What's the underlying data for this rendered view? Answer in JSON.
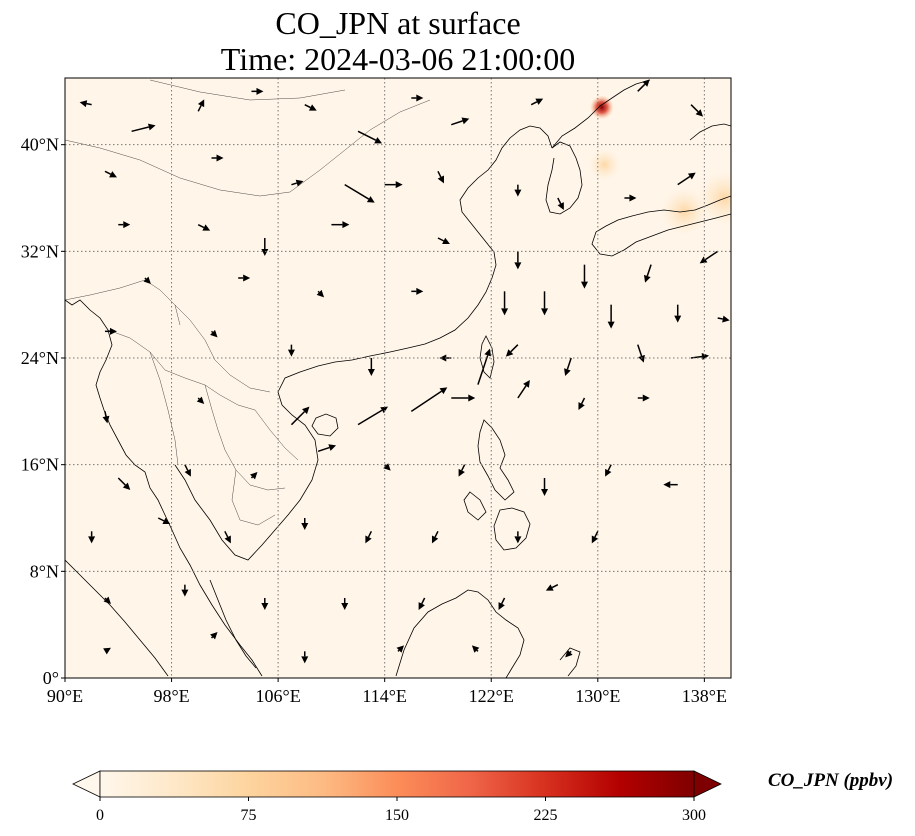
{
  "title_line1": "CO_JPN at surface",
  "title_line2": "Time: 2024-03-06 21:00:00",
  "map": {
    "projection": "PlateCarree",
    "extent": {
      "lon_min": 90,
      "lon_max": 140,
      "lat_min": 0,
      "lat_max": 45
    },
    "gridlines": true,
    "x_ticks": [
      {
        "value": 90,
        "label": "90°E"
      },
      {
        "value": 98,
        "label": "98°E"
      },
      {
        "value": 106,
        "label": "106°E"
      },
      {
        "value": 114,
        "label": "114°E"
      },
      {
        "value": 122,
        "label": "122°E"
      },
      {
        "value": 130,
        "label": "130°E"
      },
      {
        "value": 138,
        "label": "138°E"
      }
    ],
    "y_ticks": [
      {
        "value": 0,
        "label": "0°"
      },
      {
        "value": 8,
        "label": "8°N"
      },
      {
        "value": 16,
        "label": "16°N"
      },
      {
        "value": 24,
        "label": "24°N"
      },
      {
        "value": 32,
        "label": "32°N"
      },
      {
        "value": 40,
        "label": "40°N"
      }
    ],
    "background_color": "#fff5e8",
    "hotspots": [
      {
        "lon": 130.3,
        "lat": 42.8,
        "value": 300
      },
      {
        "lon": 139.5,
        "lat": 36.0,
        "value": 110
      },
      {
        "lon": 136.5,
        "lat": 35.0,
        "value": 90
      },
      {
        "lon": 130.5,
        "lat": 38.5,
        "value": 45
      }
    ]
  },
  "colorbar": {
    "label": "CO_JPN (ppbv)",
    "colormap": "OrRd",
    "min": 0,
    "max": 300,
    "extend": "both",
    "ticks": [
      {
        "value": 0,
        "label": "0"
      },
      {
        "value": 75,
        "label": "75"
      },
      {
        "value": 150,
        "label": "150"
      },
      {
        "value": 225,
        "label": "225"
      },
      {
        "value": 300,
        "label": "300"
      }
    ],
    "colors": [
      "#fff7ec",
      "#fee8c8",
      "#fdd49e",
      "#fdbb84",
      "#fc8d59",
      "#ef6548",
      "#d7301f",
      "#b30000",
      "#7f0000"
    ]
  },
  "wind_vectors": [
    {
      "lon": 92,
      "lat": 43,
      "u": -1,
      "v": 0.2
    },
    {
      "lon": 95,
      "lat": 41,
      "u": 2,
      "v": 0.5
    },
    {
      "lon": 100,
      "lat": 42.5,
      "u": 0.5,
      "v": 1
    },
    {
      "lon": 104,
      "lat": 44,
      "u": 1,
      "v": 0
    },
    {
      "lon": 108,
      "lat": 43,
      "u": 1,
      "v": -0.5
    },
    {
      "lon": 112,
      "lat": 41,
      "u": 2,
      "v": -1
    },
    {
      "lon": 116,
      "lat": 43.5,
      "u": 1,
      "v": 0
    },
    {
      "lon": 119,
      "lat": 41.5,
      "u": 1.5,
      "v": 0.5
    },
    {
      "lon": 125,
      "lat": 43,
      "u": 1,
      "v": 0.5
    },
    {
      "lon": 133,
      "lat": 44,
      "u": 1,
      "v": 1
    },
    {
      "lon": 137,
      "lat": 43,
      "u": 1,
      "v": -1
    },
    {
      "lon": 93,
      "lat": 38,
      "u": 1,
      "v": -0.5
    },
    {
      "lon": 101,
      "lat": 39,
      "u": 1,
      "v": 0
    },
    {
      "lon": 107,
      "lat": 37,
      "u": 1,
      "v": 0.3
    },
    {
      "lon": 111,
      "lat": 37,
      "u": 2.5,
      "v": -1.5
    },
    {
      "lon": 114,
      "lat": 37,
      "u": 1.5,
      "v": 0
    },
    {
      "lon": 118,
      "lat": 38,
      "u": 0.5,
      "v": -1
    },
    {
      "lon": 124,
      "lat": 37,
      "u": 0,
      "v": -1
    },
    {
      "lon": 127,
      "lat": 36,
      "u": 0.5,
      "v": -1
    },
    {
      "lon": 132,
      "lat": 36,
      "u": 1,
      "v": 0
    },
    {
      "lon": 136,
      "lat": 37,
      "u": 1.5,
      "v": 1
    },
    {
      "lon": 94,
      "lat": 34,
      "u": 1,
      "v": 0
    },
    {
      "lon": 100,
      "lat": 34,
      "u": 1,
      "v": -0.5
    },
    {
      "lon": 105,
      "lat": 33,
      "u": 0,
      "v": -1.5
    },
    {
      "lon": 110,
      "lat": 34,
      "u": 1.5,
      "v": 0
    },
    {
      "lon": 118,
      "lat": 33,
      "u": 1,
      "v": -0.5
    },
    {
      "lon": 124,
      "lat": 32,
      "u": 0,
      "v": -1.5
    },
    {
      "lon": 129,
      "lat": 31,
      "u": 0,
      "v": -2
    },
    {
      "lon": 134,
      "lat": 31,
      "u": -0.5,
      "v": -1.5
    },
    {
      "lon": 139,
      "lat": 32,
      "u": -1.5,
      "v": -1
    },
    {
      "lon": 96,
      "lat": 30,
      "u": 0.5,
      "v": -0.5
    },
    {
      "lon": 103,
      "lat": 30,
      "u": 1,
      "v": 0
    },
    {
      "lon": 109,
      "lat": 29,
      "u": 0.5,
      "v": -0.5
    },
    {
      "lon": 116,
      "lat": 29,
      "u": 1,
      "v": 0
    },
    {
      "lon": 123,
      "lat": 29,
      "u": 0,
      "v": -2
    },
    {
      "lon": 126,
      "lat": 29,
      "u": 0,
      "v": -2
    },
    {
      "lon": 131,
      "lat": 28,
      "u": 0,
      "v": -2
    },
    {
      "lon": 136,
      "lat": 28,
      "u": 0,
      "v": -1.5
    },
    {
      "lon": 139,
      "lat": 27,
      "u": 1,
      "v": -0.2
    },
    {
      "lon": 93,
      "lat": 26,
      "u": 1,
      "v": 0
    },
    {
      "lon": 101,
      "lat": 26,
      "u": 0.5,
      "v": -0.5
    },
    {
      "lon": 107,
      "lat": 25,
      "u": 0,
      "v": -1
    },
    {
      "lon": 113,
      "lat": 24,
      "u": 0,
      "v": -1.5
    },
    {
      "lon": 119,
      "lat": 24,
      "u": -1,
      "v": 0
    },
    {
      "lon": 124,
      "lat": 25,
      "u": -1,
      "v": -1
    },
    {
      "lon": 128,
      "lat": 24,
      "u": -0.5,
      "v": -1.5
    },
    {
      "lon": 133,
      "lat": 25,
      "u": 0.5,
      "v": -1.5
    },
    {
      "lon": 137,
      "lat": 24,
      "u": 1.5,
      "v": 0.2
    },
    {
      "lon": 93,
      "lat": 20,
      "u": 0.2,
      "v": -1
    },
    {
      "lon": 100,
      "lat": 21,
      "u": 0.5,
      "v": -0.5
    },
    {
      "lon": 107,
      "lat": 19,
      "u": 1.5,
      "v": 1.5
    },
    {
      "lon": 112,
      "lat": 19,
      "u": 2.5,
      "v": 1.5
    },
    {
      "lon": 116,
      "lat": 20,
      "u": 3,
      "v": 2
    },
    {
      "lon": 119,
      "lat": 21,
      "u": 2,
      "v": 0
    },
    {
      "lon": 121,
      "lat": 22,
      "u": 1,
      "v": 3
    },
    {
      "lon": 124,
      "lat": 21,
      "u": 1,
      "v": 1.5
    },
    {
      "lon": 129,
      "lat": 21,
      "u": -0.5,
      "v": -1
    },
    {
      "lon": 133,
      "lat": 21,
      "u": 1,
      "v": 0
    },
    {
      "lon": 94,
      "lat": 15,
      "u": 1,
      "v": -1
    },
    {
      "lon": 99,
      "lat": 16,
      "u": 0.5,
      "v": -1
    },
    {
      "lon": 104,
      "lat": 15,
      "u": 0.5,
      "v": 0.5
    },
    {
      "lon": 109,
      "lat": 17,
      "u": 1.5,
      "v": 0.5
    },
    {
      "lon": 114,
      "lat": 16,
      "u": 0.5,
      "v": -0.5
    },
    {
      "lon": 120,
      "lat": 16,
      "u": -0.5,
      "v": -1
    },
    {
      "lon": 126,
      "lat": 15,
      "u": 0,
      "v": -1.5
    },
    {
      "lon": 131,
      "lat": 16,
      "u": -0.5,
      "v": -1
    },
    {
      "lon": 136,
      "lat": 14.5,
      "u": -1.2,
      "v": 0
    },
    {
      "lon": 92,
      "lat": 11,
      "u": 0,
      "v": -1
    },
    {
      "lon": 97,
      "lat": 12,
      "u": 1,
      "v": -0.5
    },
    {
      "lon": 102,
      "lat": 11,
      "u": 0.5,
      "v": -1
    },
    {
      "lon": 108,
      "lat": 12,
      "u": 0,
      "v": -1
    },
    {
      "lon": 113,
      "lat": 11,
      "u": -0.5,
      "v": -1
    },
    {
      "lon": 118,
      "lat": 11,
      "u": -0.5,
      "v": -1
    },
    {
      "lon": 124,
      "lat": 11,
      "u": 0,
      "v": -1
    },
    {
      "lon": 130,
      "lat": 11,
      "u": -0.5,
      "v": -1
    },
    {
      "lon": 93,
      "lat": 6,
      "u": 0.5,
      "v": -0.5
    },
    {
      "lon": 99,
      "lat": 7,
      "u": 0,
      "v": -1
    },
    {
      "lon": 105,
      "lat": 6,
      "u": 0,
      "v": -1
    },
    {
      "lon": 111,
      "lat": 6,
      "u": 0,
      "v": -1
    },
    {
      "lon": 117,
      "lat": 6,
      "u": -0.5,
      "v": -1
    },
    {
      "lon": 123,
      "lat": 6,
      "u": -0.5,
      "v": -1
    },
    {
      "lon": 127,
      "lat": 7,
      "u": -1,
      "v": -0.5
    },
    {
      "lon": 93,
      "lat": 2,
      "u": 0.5,
      "v": 0.3
    },
    {
      "lon": 101,
      "lat": 3,
      "u": 0.5,
      "v": 0.5
    },
    {
      "lon": 108,
      "lat": 2,
      "u": 0,
      "v": -1
    },
    {
      "lon": 115,
      "lat": 2,
      "u": 0.5,
      "v": 0.5
    },
    {
      "lon": 121,
      "lat": 2,
      "u": -0.5,
      "v": 0.5
    },
    {
      "lon": 128,
      "lat": 2,
      "u": -0.5,
      "v": -0.5
    }
  ]
}
